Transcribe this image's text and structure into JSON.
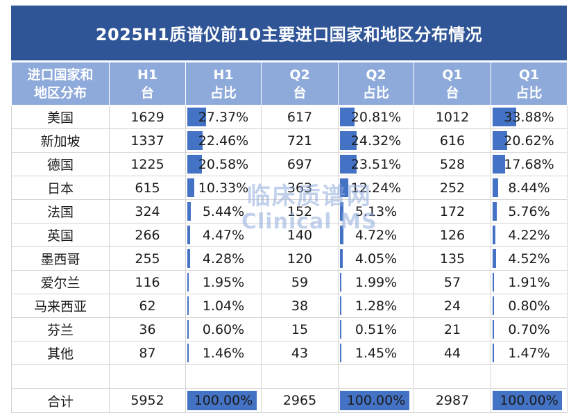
{
  "title": "2025H1质谱仪前10主要进口国家和地区分布情况",
  "headers": [
    [
      "进口国家和",
      "地区分布"
    ],
    [
      "H1",
      "台"
    ],
    [
      "H1",
      "占比"
    ],
    [
      "Q2",
      "台"
    ],
    [
      "Q2",
      "占比"
    ],
    [
      "Q1",
      "台"
    ],
    [
      "Q1",
      "占比"
    ]
  ],
  "rows": [
    {
      "name": "美国",
      "h1": "1629",
      "h1_pct": "27.37%",
      "q2": "617",
      "q2_pct": "20.81%",
      "q1": "1012",
      "q1_pct": "33.88%"
    },
    {
      "name": "新加坡",
      "h1": "1337",
      "h1_pct": "22.46%",
      "q2": "721",
      "q2_pct": "24.32%",
      "q1": "616",
      "q1_pct": "20.62%"
    },
    {
      "name": "德国",
      "h1": "1225",
      "h1_pct": "20.58%",
      "q2": "697",
      "q2_pct": "23.51%",
      "q1": "528",
      "q1_pct": "17.68%"
    },
    {
      "name": "日本",
      "h1": "615",
      "h1_pct": "10.33%",
      "q2": "363",
      "q2_pct": "12.24%",
      "q1": "252",
      "q1_pct": "8.44%"
    },
    {
      "name": "法国",
      "h1": "324",
      "h1_pct": "5.44%",
      "q2": "152",
      "q2_pct": "5.13%",
      "q1": "172",
      "q1_pct": "5.76%"
    },
    {
      "name": "英国",
      "h1": "266",
      "h1_pct": "4.47%",
      "q2": "140",
      "q2_pct": "4.72%",
      "q1": "126",
      "q1_pct": "4.22%"
    },
    {
      "name": "墨西哥",
      "h1": "255",
      "h1_pct": "4.28%",
      "q2": "120",
      "q2_pct": "4.05%",
      "q1": "135",
      "q1_pct": "4.52%"
    },
    {
      "name": "爱尔兰",
      "h1": "116",
      "h1_pct": "1.95%",
      "q2": "59",
      "q2_pct": "1.99%",
      "q1": "57",
      "q1_pct": "1.91%"
    },
    {
      "name": "马来西亚",
      "h1": "62",
      "h1_pct": "1.04%",
      "q2": "38",
      "q2_pct": "1.28%",
      "q1": "24",
      "q1_pct": "0.80%"
    },
    {
      "name": "芬兰",
      "h1": "36",
      "h1_pct": "0.60%",
      "q2": "15",
      "q2_pct": "0.51%",
      "q1": "21",
      "q1_pct": "0.70%"
    },
    {
      "name": "其他",
      "h1": "87",
      "h1_pct": "1.46%",
      "q2": "43",
      "q2_pct": "1.45%",
      "q1": "44",
      "q1_pct": "1.47%"
    }
  ],
  "total": {
    "name": "合计",
    "h1": "5952",
    "h1_pct": "100.00%",
    "q2": "2965",
    "q2_pct": "100.00%",
    "q1": "2987",
    "q1_pct": "100.00%"
  },
  "watermark": {
    "line1": "临床质谱网",
    "line2": "Clinical MS"
  },
  "colors": {
    "title_bg": "#2f5597",
    "header_bg": "#8eaadb",
    "bar": "#4472c4"
  }
}
